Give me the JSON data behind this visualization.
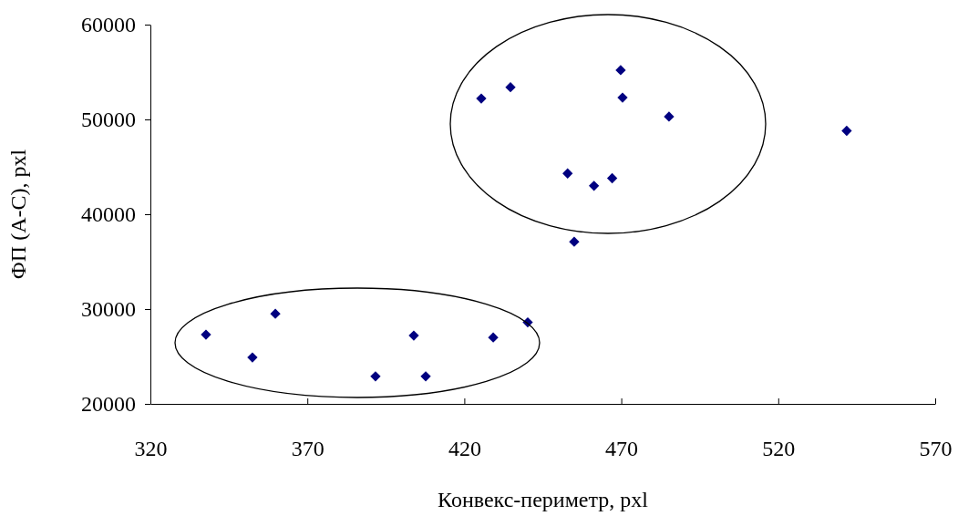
{
  "chart_data": {
    "type": "scatter",
    "xlabel": "Конвекс-периметр, pxl",
    "ylabel": "ФП (А-С), pxl",
    "marker": "diamond",
    "grid": false,
    "xlim": [
      320,
      570
    ],
    "xticks": [
      320,
      370,
      420,
      470,
      520,
      570
    ],
    "ylim": [
      20000,
      60000
    ],
    "yticks": [
      20000,
      30000,
      40000,
      50000,
      60000
    ],
    "series": [
      {
        "color": "#000080",
        "x": [
          337.7,
          352.5,
          359.8,
          391.7,
          403.9,
          407.7,
          429.2,
          440.2,
          425.4,
          434.7,
          469.8,
          470.4,
          485.2,
          541.8,
          452.9,
          461.3,
          467.1,
          455.0
        ],
        "values": [
          27300,
          24900,
          29500,
          22900,
          27200,
          22900,
          27000,
          28600,
          52200,
          53400,
          55200,
          52300,
          50300,
          48800,
          44300,
          43000,
          43800,
          37100
        ]
      }
    ]
  }
}
